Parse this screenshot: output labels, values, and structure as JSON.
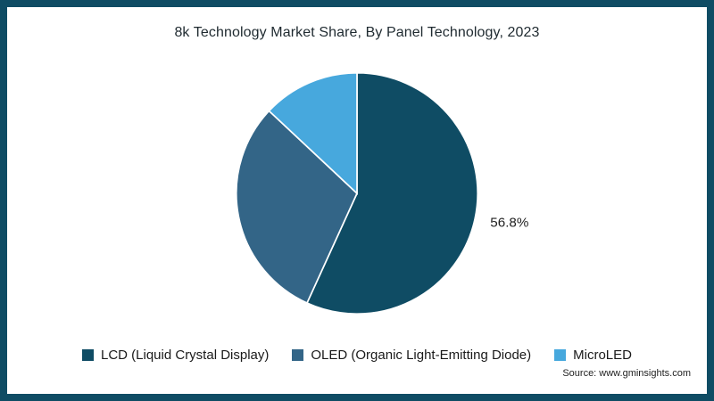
{
  "frame": {
    "border_color": "#0f4c64"
  },
  "chart_data": {
    "type": "pie",
    "title": "8k Technology Market Share, By Panel Technology, 2023",
    "start_angle_deg": 0,
    "direction": "clockwise",
    "legend_position": "bottom",
    "slices": [
      {
        "label": "LCD (Liquid Crystal Display)",
        "value": 56.8,
        "color": "#0f4c64",
        "data_label": "56.8%"
      },
      {
        "label": "OLED (Organic Light-Emitting Diode)",
        "value": 30.2,
        "color": "#336587",
        "data_label": ""
      },
      {
        "label": "MicroLED",
        "value": 13.0,
        "color": "#47a8dd",
        "data_label": ""
      }
    ]
  },
  "source": "Source: www.gminsights.com"
}
